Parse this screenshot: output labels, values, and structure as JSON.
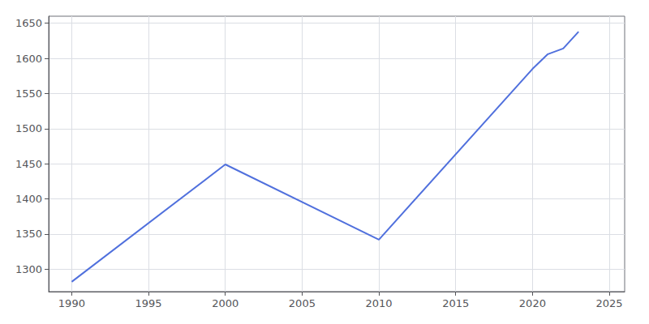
{
  "chart_data": {
    "type": "line",
    "x": [
      1990,
      2000,
      2010,
      2020,
      2021,
      2022,
      2023
    ],
    "values": [
      1282,
      1449,
      1342,
      1585,
      1606,
      1614,
      1638
    ],
    "xlim": [
      1988.5,
      2026
    ],
    "ylim": [
      1268,
      1660
    ],
    "xticks": [
      1990,
      1995,
      2000,
      2005,
      2010,
      2015,
      2020,
      2025
    ],
    "yticks": [
      1300,
      1350,
      1400,
      1450,
      1500,
      1550,
      1600,
      1650
    ],
    "grid": true
  }
}
